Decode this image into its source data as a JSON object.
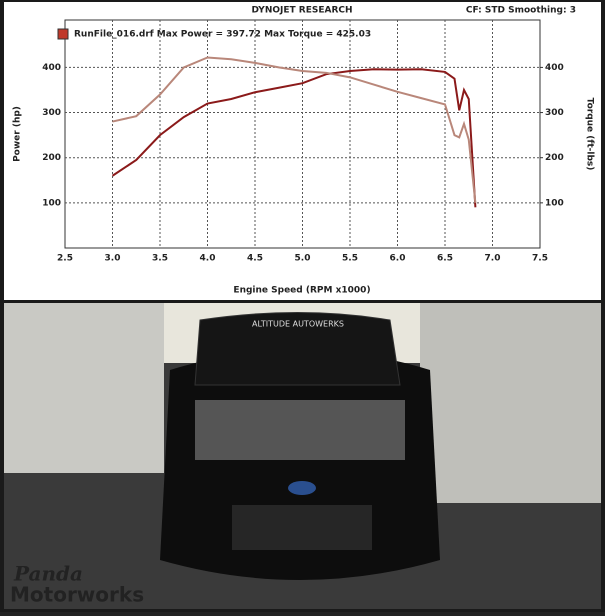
{
  "chart_data": {
    "type": "line",
    "header_left": "DYNOJET RESEARCH",
    "header_right": "CF: STD  Smoothing: 3",
    "legend_text": "RunFile_016.drf Max Power = 397.72   Max Torque = 425.03",
    "legend_color": "#c0392b",
    "xlabel": "Engine Speed (RPM x1000)",
    "ylabel": "Power (hp)",
    "y2label": "Torque (ft-lbs)",
    "x": [
      3.0,
      3.25,
      3.5,
      3.75,
      4.0,
      4.25,
      4.5,
      4.75,
      5.0,
      5.25,
      5.5,
      5.75,
      6.0,
      6.25,
      6.5,
      6.6,
      6.65,
      6.7,
      6.75,
      6.82
    ],
    "series": [
      {
        "color": "#8b1a1a",
        "values": [
          160,
          195,
          250,
          290,
          320,
          330,
          345,
          355,
          365,
          385,
          392,
          396,
          395,
          396,
          390,
          375,
          305,
          350,
          330,
          90
        ]
      },
      {
        "color": "#b9877a",
        "axis": "y2",
        "values": [
          280,
          292,
          340,
          400,
          422,
          418,
          410,
          400,
          392,
          388,
          378,
          362,
          346,
          332,
          318,
          250,
          245,
          275,
          240,
          100
        ]
      }
    ],
    "xlim": [
      2.5,
      7.5
    ],
    "xticks": [
      2.5,
      {
        "value": 3,
        "label": "3.0"
      },
      3.5,
      {
        "value": 4,
        "label": "4.0"
      },
      4.5,
      {
        "value": 5,
        "label": "5.0"
      },
      5.5,
      {
        "value": 6,
        "label": "6.0"
      },
      6.5,
      {
        "value": 7,
        "label": "7.0"
      },
      7.5
    ],
    "ylim": [
      0,
      505
    ],
    "yticks": [
      100,
      200,
      300,
      400
    ],
    "y2lim": [
      0,
      505
    ],
    "y2ticks": [
      100,
      200,
      300,
      400
    ],
    "grid": true
  },
  "photo": {
    "windshield_text": "ALTITUDE AUTOWERKS",
    "watermark_top": "Panda",
    "watermark_bottom": "Motorworks"
  }
}
